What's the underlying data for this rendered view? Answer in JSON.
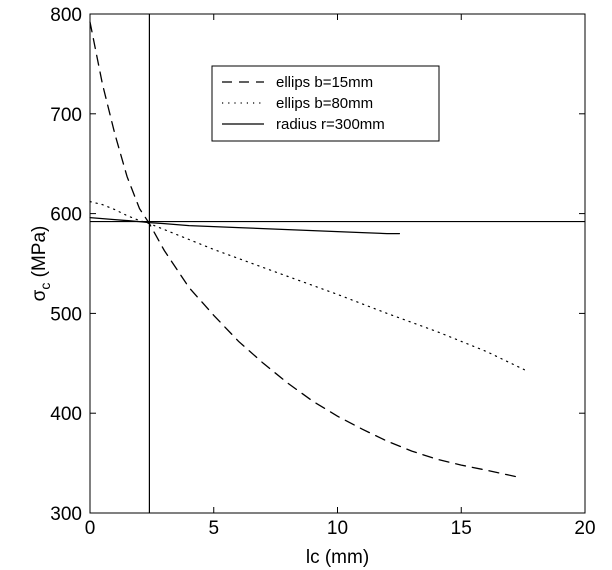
{
  "chart_data": {
    "type": "line",
    "title": "",
    "xlabel": "lc (mm)",
    "ylabel_main": "σ",
    "ylabel_sub": "c",
    "ylabel_unit": " (MPa)",
    "xlim": [
      0,
      20
    ],
    "ylim": [
      300,
      800
    ],
    "xticks": [
      0,
      5,
      10,
      15,
      20
    ],
    "yticks": [
      300,
      400,
      500,
      600,
      700,
      800
    ],
    "grid": false,
    "legend_position": "top-center",
    "series": [
      {
        "name": "ellips b=15mm",
        "style": "dashed",
        "color": "#000000",
        "x": [
          0,
          0.5,
          1.0,
          1.5,
          2.0,
          2.4,
          3.0,
          4.0,
          5.0,
          6.0,
          7.0,
          8.0,
          9.0,
          10.0,
          11.0,
          12.0,
          13.0,
          14.0,
          15.0,
          16.0,
          17.3
        ],
        "y": [
          792,
          730,
          680,
          637,
          605,
          590,
          563,
          526,
          498,
          472,
          450,
          430,
          412,
          397,
          384,
          372,
          362,
          354,
          348,
          343,
          336
        ]
      },
      {
        "name": "ellips b=80mm",
        "style": "dotted",
        "color": "#000000",
        "x": [
          0,
          0.5,
          1.0,
          1.5,
          2.0,
          2.4,
          3.0,
          4.0,
          5.0,
          6.0,
          8.0,
          10.0,
          12.0,
          14.0,
          16.0,
          17.6
        ],
        "y": [
          612,
          609,
          604,
          598,
          593,
          590,
          584,
          574,
          564,
          555,
          537,
          519,
          500,
          482,
          462,
          443
        ]
      },
      {
        "name": "radius r=300mm",
        "style": "solid",
        "color": "#000000",
        "x": [
          0,
          1.0,
          2.0,
          2.4,
          3.0,
          4.0,
          5.0,
          6.0,
          7.0,
          8.0,
          9.0,
          10.0,
          11.0,
          12.0,
          12.5
        ],
        "y": [
          596,
          594,
          592,
          591,
          590,
          588,
          587,
          586,
          585,
          584,
          583,
          582,
          581,
          580,
          580
        ]
      }
    ],
    "reference_lines": {
      "vertical_x": 2.4,
      "horizontal_y": 592
    }
  }
}
